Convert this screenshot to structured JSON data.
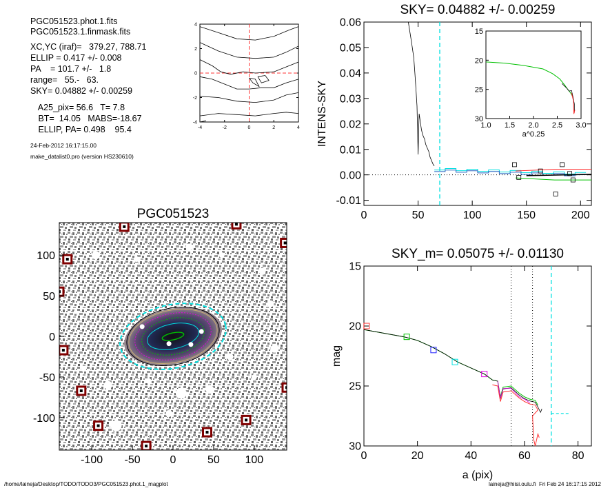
{
  "header": {
    "lines": [
      "PGC051523.phot.1.fits",
      "PGC051523.1.finmask.fits",
      "XC,YC (iraf)=   379.27, 788.71",
      "ELLIP = 0.417 +/- 0.008",
      "PA    = 101.7 +/-   1.8",
      "range=   55.-   63.",
      "SKY= 0.04882 +/- 0.00259",
      " A25_pix= 56.6   T= 7.8",
      " BT=  14.05   MABS=-18.67",
      " ELLIP, PA= 0.498    95.4"
    ],
    "date": "24-Feb-2012 16:17:15.00",
    "program": "make_datalist0.pro (version HS230610)"
  },
  "footer": {
    "path": "/home/laineja/Desktop/TODO/TODO3/PGC051523.phot.1_magplot",
    "user": "laineja@hiisi.oulu.fi  Fri Feb 24 16:17:15 2012"
  },
  "colors": {
    "cyan": "#00e0e0",
    "red": "#ff3030",
    "green": "#00c000",
    "magenta": "#e000e0",
    "blue": "#2020ff",
    "orange": "#e09020",
    "ellipse": "#c8b070"
  },
  "chart_data": [
    {
      "id": "contour",
      "type": "contour",
      "xlim": [
        -4,
        4
      ],
      "ylim": [
        -4,
        4
      ],
      "xticks": [
        "-4",
        "-2",
        "0",
        "2",
        "4"
      ],
      "yticks": [
        "-4",
        "-2",
        "0",
        "2",
        "4"
      ],
      "grid": false
    },
    {
      "id": "sky",
      "type": "line",
      "title": "SKY= 0.04882 +/- 0.00259",
      "ylabel": "INTENS-SKY",
      "xlim": [
        0,
        210
      ],
      "ylim": [
        -0.012,
        0.06
      ],
      "xticks": [
        "0",
        "50",
        "100",
        "150",
        "200"
      ],
      "yticks": [
        "-0.01",
        "0.00",
        "0.01",
        "0.02",
        "0.03",
        "0.04",
        "0.05",
        "0.06"
      ],
      "profile": [
        [
          41,
          0.06
        ],
        [
          44,
          0.052
        ],
        [
          46,
          0.046
        ],
        [
          47,
          0.04
        ],
        [
          48,
          0.034
        ],
        [
          49,
          0.027
        ],
        [
          49.5,
          0.018
        ],
        [
          50,
          0.008
        ],
        [
          50.5,
          0.018
        ],
        [
          51,
          0.024
        ],
        [
          52,
          0.021
        ],
        [
          53,
          0.018
        ],
        [
          54,
          0.016
        ],
        [
          55,
          0.015
        ],
        [
          56,
          0.014
        ],
        [
          57,
          0.012
        ],
        [
          58,
          0.011
        ],
        [
          60,
          0.009
        ],
        [
          61,
          0.007
        ],
        [
          63,
          0.005
        ],
        [
          64,
          0.004
        ],
        [
          65,
          0.0035
        ]
      ],
      "cyan_line_x": 70,
      "sky_points": [
        [
          139,
          0.004
        ],
        [
          143,
          -0.001
        ],
        [
          163,
          0.0015
        ],
        [
          177,
          -0.0075
        ],
        [
          183,
          0.004
        ],
        [
          190,
          0.0005
        ],
        [
          193,
          -0.002
        ]
      ],
      "inset": {
        "xlabel": "a^0.25",
        "xlim": [
          1.0,
          3.0
        ],
        "ylim": [
          15,
          30
        ],
        "xticks": [
          "1.0",
          "1.5",
          "2.0",
          "2.5",
          "3.0"
        ],
        "yticks": [
          "15",
          "20",
          "25",
          "30"
        ]
      }
    },
    {
      "id": "image",
      "type": "image",
      "title": "PGC051523",
      "xlim": [
        -140,
        140
      ],
      "ylim": [
        -140,
        140
      ],
      "xticks": [
        "-100",
        "-50",
        "0",
        "50",
        "100"
      ],
      "yticks": [
        "-100",
        "-50",
        "0",
        "50",
        "100"
      ],
      "masks": [
        [
          -60,
          135
        ],
        [
          -130,
          95
        ],
        [
          -140,
          55
        ],
        [
          -135,
          -17
        ],
        [
          -113,
          -67
        ],
        [
          -92,
          -110
        ],
        [
          -33,
          -135
        ],
        [
          42,
          -118
        ],
        [
          90,
          -103
        ],
        [
          140,
          -63
        ],
        [
          138,
          115
        ],
        [
          78,
          138
        ]
      ]
    },
    {
      "id": "mag",
      "type": "line",
      "title": "SKY_m=  0.05075 +/- 0.01130",
      "xlabel": "a (pix)",
      "ylabel": "mag",
      "xlim": [
        0,
        85
      ],
      "ylim": [
        30,
        15
      ],
      "xticks": [
        "0",
        "20",
        "40",
        "60",
        "80"
      ],
      "yticks": [
        "15",
        "20",
        "25",
        "30"
      ],
      "vlines_dotted": [
        55,
        63
      ],
      "vline_dashed": 70,
      "profile": [
        [
          0,
          20.3
        ],
        [
          5,
          20.5
        ],
        [
          10,
          20.7
        ],
        [
          15,
          20.9
        ],
        [
          20,
          21.2
        ],
        [
          25,
          21.7
        ],
        [
          30,
          22.3
        ],
        [
          35,
          23.0
        ],
        [
          40,
          23.5
        ],
        [
          45,
          24.0
        ],
        [
          48,
          24.5
        ],
        [
          50,
          24.6
        ],
        [
          51,
          25.9
        ],
        [
          52,
          25.1
        ],
        [
          55,
          25.0
        ],
        [
          58,
          25.6
        ],
        [
          60,
          25.9
        ],
        [
          62,
          26.1
        ],
        [
          64,
          26.2
        ],
        [
          65,
          26.6
        ]
      ],
      "markers": [
        [
          1,
          20.0,
          "red"
        ],
        [
          16,
          20.9,
          "green"
        ],
        [
          26,
          22.0,
          "blue"
        ],
        [
          34,
          23.0,
          "cyan"
        ],
        [
          45,
          24.0,
          "magenta"
        ]
      ]
    }
  ]
}
